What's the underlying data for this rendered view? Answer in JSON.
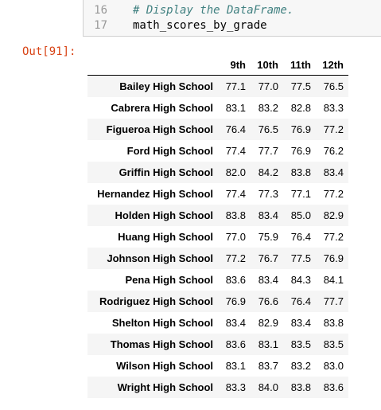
{
  "code": {
    "lines": [
      {
        "number": "16",
        "text": "# Display the DataFrame.",
        "kind": "comment"
      },
      {
        "number": "17",
        "text": "math_scores_by_grade",
        "kind": "code"
      }
    ]
  },
  "output": {
    "prompt": "Out[91]:"
  },
  "table": {
    "columns": [
      "9th",
      "10th",
      "11th",
      "12th"
    ],
    "rows": [
      [
        "Bailey High School",
        "77.1",
        "77.0",
        "77.5",
        "76.5"
      ],
      [
        "Cabrera High School",
        "83.1",
        "83.2",
        "82.8",
        "83.3"
      ],
      [
        "Figueroa High School",
        "76.4",
        "76.5",
        "76.9",
        "77.2"
      ],
      [
        "Ford High School",
        "77.4",
        "77.7",
        "76.9",
        "76.2"
      ],
      [
        "Griffin High School",
        "82.0",
        "84.2",
        "83.8",
        "83.4"
      ],
      [
        "Hernandez High School",
        "77.4",
        "77.3",
        "77.1",
        "77.2"
      ],
      [
        "Holden High School",
        "83.8",
        "83.4",
        "85.0",
        "82.9"
      ],
      [
        "Huang High School",
        "77.0",
        "75.9",
        "76.4",
        "77.2"
      ],
      [
        "Johnson High School",
        "77.2",
        "76.7",
        "77.5",
        "76.9"
      ],
      [
        "Pena High School",
        "83.6",
        "83.4",
        "84.3",
        "84.1"
      ],
      [
        "Rodriguez High School",
        "76.9",
        "76.6",
        "76.4",
        "77.7"
      ],
      [
        "Shelton High School",
        "83.4",
        "82.9",
        "83.4",
        "83.8"
      ],
      [
        "Thomas High School",
        "83.6",
        "83.1",
        "83.5",
        "83.5"
      ],
      [
        "Wilson High School",
        "83.1",
        "83.7",
        "83.2",
        "83.0"
      ],
      [
        "Wright High School",
        "83.3",
        "84.0",
        "83.8",
        "83.6"
      ]
    ]
  }
}
